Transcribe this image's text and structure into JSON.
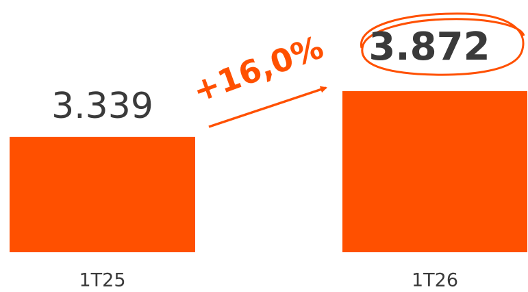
{
  "chart_data": {
    "type": "bar",
    "categories": [
      "1T25",
      "1T26"
    ],
    "values": [
      3339,
      3872
    ],
    "value_labels": [
      "3.339",
      "3.872"
    ],
    "color": "#ff5000",
    "ylim": [
      2000,
      4500
    ],
    "annotation": "+16,0%"
  }
}
